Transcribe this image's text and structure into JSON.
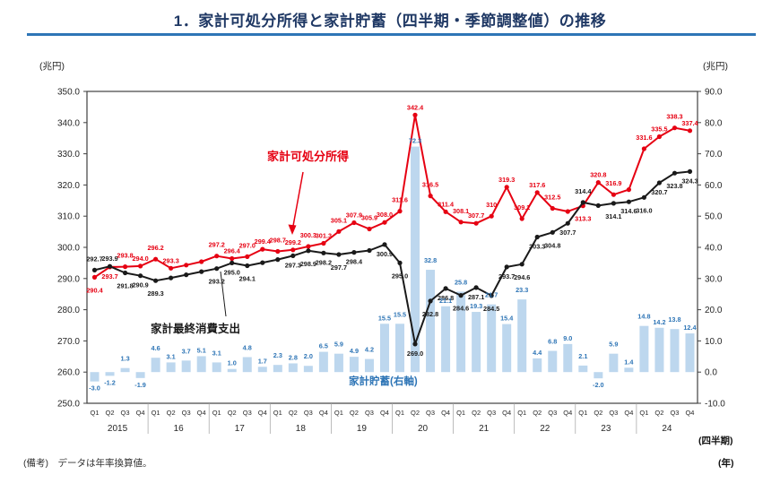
{
  "header": {
    "title": "1．家計可処分所得と家計貯蓄（四半期・季節調整値）の推移"
  },
  "footer": {
    "note": "(備考)　データは年率換算値。"
  },
  "chart_data": {
    "type": "combo",
    "title": "家計可処分所得と家計貯蓄（四半期・季節調整値）の推移",
    "categories": [
      "2015Q1",
      "2015Q2",
      "2015Q3",
      "2015Q4",
      "2016Q1",
      "2016Q2",
      "2016Q3",
      "2016Q4",
      "2017Q1",
      "2017Q2",
      "2017Q3",
      "2017Q4",
      "2018Q1",
      "2018Q2",
      "2018Q3",
      "2018Q4",
      "2019Q1",
      "2019Q2",
      "2019Q3",
      "2019Q4",
      "2020Q1",
      "2020Q2",
      "2020Q3",
      "2020Q4",
      "2021Q1",
      "2021Q2",
      "2021Q3",
      "2021Q4",
      "2022Q1",
      "2022Q2",
      "2022Q3",
      "2022Q4",
      "2023Q1",
      "2023Q2",
      "2023Q3",
      "2023Q4",
      "2024Q1",
      "2024Q2",
      "2024Q3",
      "2024Q4"
    ],
    "x": {
      "years": [
        "2015",
        "16",
        "17",
        "18",
        "19",
        "20",
        "21",
        "22",
        "23",
        "24"
      ],
      "quarters": [
        "Q1",
        "Q2",
        "Q3",
        "Q4"
      ],
      "note_quarter": "(四半期)",
      "note_year": "(年)"
    },
    "y_left": {
      "unit": "(兆円)",
      "min": 250,
      "max": 350,
      "step": 10
    },
    "y_right": {
      "unit": "(兆円)",
      "min": -10,
      "max": 90,
      "step": 10
    },
    "grid": false,
    "legend_position": "inline-annotations",
    "series": [
      {
        "name": "家計可処分所得",
        "type": "line",
        "axis": "left",
        "color": "#e60012",
        "values": [
          290.4,
          293.7,
          293.8,
          294.0,
          296.2,
          293.3,
          294.3,
          295.4,
          297.2,
          296.4,
          297.0,
          299.4,
          298.7,
          299.2,
          300.3,
          301.3,
          305.1,
          307.9,
          305.9,
          308.0,
          311.6,
          342.4,
          316.5,
          311.4,
          308.1,
          307.7,
          310.0,
          319.3,
          309.2,
          317.6,
          312.5,
          311.5,
          313.3,
          320.8,
          316.9,
          318.5,
          331.6,
          335.5,
          338.3,
          337.4
        ],
        "labels": [
          "290.4",
          "293.7",
          "293.8",
          "294.0",
          "296.2",
          "293.3",
          null,
          null,
          "297.2",
          "296.4",
          "297.0",
          "299.4",
          "298.7",
          "299.2",
          "300.3",
          "301.3",
          "305.1",
          "307.9",
          "305.9",
          "308.0",
          "311.6",
          "342.4",
          "316.5",
          "311.4",
          "308.1",
          "307.7",
          "310",
          "319.3",
          "309.2",
          "317.6",
          "312.5",
          null,
          "313.3",
          "320.8",
          "316.9",
          null,
          "331.6",
          "335.5",
          "338.3",
          "337.4"
        ]
      },
      {
        "name": "家計最終消費支出",
        "type": "line",
        "axis": "left",
        "color": "#1a1a1a",
        "values": [
          292.7,
          293.9,
          291.8,
          290.9,
          289.3,
          290.2,
          291.2,
          292.2,
          293.2,
          295.0,
          294.1,
          295.1,
          296.1,
          297.3,
          298.9,
          298.2,
          297.7,
          298.4,
          299.0,
          300.9,
          295.0,
          269.0,
          282.8,
          286.8,
          284.6,
          287.1,
          284.5,
          293.7,
          294.6,
          303.3,
          304.8,
          307.7,
          314.4,
          313.4,
          314.1,
          314.6,
          316.0,
          320.7,
          323.8,
          324.3
        ],
        "labels": [
          "292.7",
          "293.9",
          "291.8",
          "290.9",
          "289.3",
          null,
          null,
          null,
          "293.2",
          "295.0",
          "294.1",
          null,
          null,
          "297.3",
          "298.9",
          "298.2",
          "297.7",
          "298.4",
          null,
          "300.9",
          "295.0",
          "269.0",
          "282.8",
          "286.8",
          "284.6",
          "287.1",
          "284.5",
          "293.7",
          "294.6",
          "303.3",
          "304.8",
          "307.7",
          "314.4",
          null,
          "314.1",
          "314.6",
          "316.0",
          "320.7",
          "323.8",
          "324.3"
        ]
      },
      {
        "name": "家計貯蓄(右軸)",
        "type": "bar",
        "axis": "right",
        "color": "#bdd7ee",
        "label_color": "#2e75b6",
        "values": [
          -3.0,
          -1.2,
          1.3,
          -1.9,
          4.6,
          3.1,
          3.7,
          5.1,
          3.1,
          1.0,
          4.8,
          1.7,
          2.3,
          2.8,
          2.0,
          6.5,
          5.9,
          4.9,
          4.2,
          15.5,
          15.5,
          72.3,
          32.8,
          21.1,
          25.8,
          19.3,
          21.7,
          15.4,
          23.3,
          4.4,
          6.8,
          9.0,
          2.1,
          -2.0,
          5.9,
          1.4,
          14.8,
          14.2,
          13.8,
          12.4
        ],
        "labels": [
          "-3.0",
          "-1.2",
          "1.3",
          "-1.9",
          "4.6",
          "3.1",
          "3.7",
          "5.1",
          "3.1",
          "1.0",
          "4.8",
          "1.7",
          "2.3",
          "2.8",
          "2.0",
          "6.5",
          "5.9",
          "4.9",
          "4.2",
          "15.5",
          "15.5",
          "72.3",
          "32.8",
          "21.1",
          "25.8",
          "19.3",
          "21.7",
          "15.4",
          "23.3",
          "4.4",
          "6.8",
          "9.0",
          "2.1",
          "-2.0",
          "5.9",
          "1.4",
          "14.8",
          "14.2",
          "13.8",
          "12.4"
        ]
      }
    ],
    "colors": {
      "title": "#1f3864",
      "title_underline": "#2e75b6",
      "income_line": "#e60012",
      "consumption_line": "#1a1a1a",
      "savings_bar": "#bdd7ee",
      "savings_text": "#2e75b6"
    }
  }
}
